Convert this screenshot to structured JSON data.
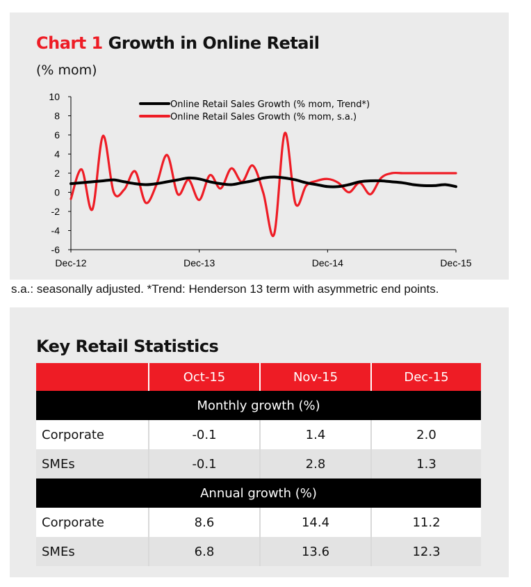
{
  "chart": {
    "title_prefix": "Chart 1",
    "title_rest": "Growth in Online Retail",
    "subtitle": "(% mom)",
    "footnote": "s.a.: seasonally adjusted. *Trend: Henderson 13 term with asymmetric end points."
  },
  "chart_data": {
    "type": "line",
    "x": [
      "Dec-12",
      "Jan-13",
      "Feb-13",
      "Mar-13",
      "Apr-13",
      "May-13",
      "Jun-13",
      "Jul-13",
      "Aug-13",
      "Sep-13",
      "Oct-13",
      "Nov-13",
      "Dec-13",
      "Jan-14",
      "Feb-14",
      "Mar-14",
      "Apr-14",
      "May-14",
      "Jun-14",
      "Jul-14",
      "Aug-14",
      "Sep-14",
      "Oct-14",
      "Nov-14",
      "Dec-14",
      "Jan-15",
      "Feb-15",
      "Mar-15",
      "Apr-15",
      "May-15",
      "Jun-15",
      "Jul-15",
      "Aug-15",
      "Sep-15",
      "Oct-15",
      "Nov-15",
      "Dec-15"
    ],
    "x_tick_labels": [
      "Dec-12",
      "Dec-13",
      "Dec-14",
      "Dec-15"
    ],
    "ylim": [
      -6,
      10
    ],
    "yticks": [
      -6,
      -4,
      -2,
      0,
      2,
      4,
      6,
      8,
      10
    ],
    "legend_position": "top-center",
    "series": [
      {
        "name": "Online Retail Sales Growth (% mom, Trend*)",
        "color": "#000000",
        "values": [
          0.9,
          1.0,
          1.1,
          1.2,
          1.3,
          1.1,
          0.9,
          0.8,
          0.9,
          1.1,
          1.3,
          1.5,
          1.4,
          1.1,
          0.9,
          0.8,
          1.0,
          1.2,
          1.5,
          1.6,
          1.5,
          1.3,
          1.0,
          0.8,
          0.6,
          0.6,
          0.8,
          1.1,
          1.2,
          1.2,
          1.1,
          1.0,
          0.8,
          0.7,
          0.7,
          0.8,
          0.6
        ]
      },
      {
        "name": "Online Retail Sales Growth (% mom, s.a.)",
        "color": "#ee1c25",
        "values": [
          -0.7,
          2.4,
          -1.8,
          5.9,
          0.0,
          0.3,
          2.2,
          -1.1,
          0.8,
          3.9,
          -0.2,
          1.3,
          -0.8,
          1.8,
          0.4,
          2.5,
          1.1,
          2.8,
          -0.1,
          -4.4,
          6.2,
          -1.2,
          0.7,
          1.2,
          1.4,
          1.0,
          0.0,
          1.0,
          -0.2,
          1.5,
          2.0,
          2.0,
          2.0,
          2.0,
          2.0,
          2.0,
          2.0
        ]
      }
    ]
  },
  "stats": {
    "title": "Key Retail Statistics",
    "headers": [
      "",
      "Oct-15",
      "Nov-15",
      "Dec-15"
    ],
    "monthly_label": "Monthly growth (%)",
    "annual_label": "Annual growth (%)",
    "monthly_rows": [
      {
        "label": "Corporate",
        "values": [
          "-0.1",
          "1.4",
          "2.0"
        ]
      },
      {
        "label": "SMEs",
        "values": [
          "-0.1",
          "2.8",
          "1.3"
        ]
      }
    ],
    "annual_rows": [
      {
        "label": "Corporate",
        "values": [
          "8.6",
          "14.4",
          "11.2"
        ]
      },
      {
        "label": "SMEs",
        "values": [
          "6.8",
          "13.6",
          "12.3"
        ]
      }
    ]
  }
}
